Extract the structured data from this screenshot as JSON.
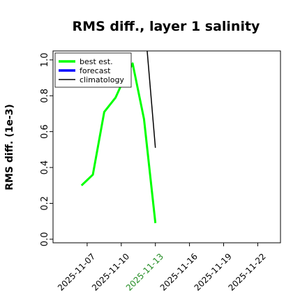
{
  "chart_data": {
    "type": "line",
    "title": "RMS diff., layer 1 salinity",
    "xlabel": "",
    "ylabel": "RMS diff. (1e-3)",
    "ylim": [
      -0.02,
      1.05
    ],
    "xlim": [
      "2025-11-04T00:00",
      "2025-11-24T00:00"
    ],
    "yticks": [
      0.0,
      0.2,
      0.4,
      0.6,
      0.8,
      1.0
    ],
    "yticklabels": [
      "0.0",
      "0.2",
      "0.4",
      "0.6",
      "0.8",
      "1.0"
    ],
    "xticks": [
      "2025-11-07",
      "2025-11-10",
      "2025-11-13",
      "2025-11-16",
      "2025-11-19",
      "2025-11-22"
    ],
    "highlighted_xtick": "2025-11-13",
    "highlight_color": "#228B22",
    "grid": false,
    "legend_position": "upper-left",
    "series": [
      {
        "name": "best est.",
        "color": "#00ff00",
        "x": [
          "2025-11-06T12:00",
          "2025-11-07T12:00",
          "2025-11-08T12:00",
          "2025-11-09T12:00",
          "2025-11-10T00:00",
          "2025-11-11T00:00",
          "2025-11-12T00:00",
          "2025-11-13T00:00"
        ],
        "y": [
          0.3,
          0.36,
          0.71,
          0.79,
          0.86,
          0.98,
          0.67,
          0.09
        ]
      },
      {
        "name": "forecast",
        "color": "#0000ff",
        "x": [],
        "y": []
      },
      {
        "name": "climatology",
        "color": "#000000",
        "x": [
          "2025-11-12T06:00",
          "2025-11-13T00:00"
        ],
        "y": [
          1.07,
          0.51
        ]
      }
    ]
  }
}
